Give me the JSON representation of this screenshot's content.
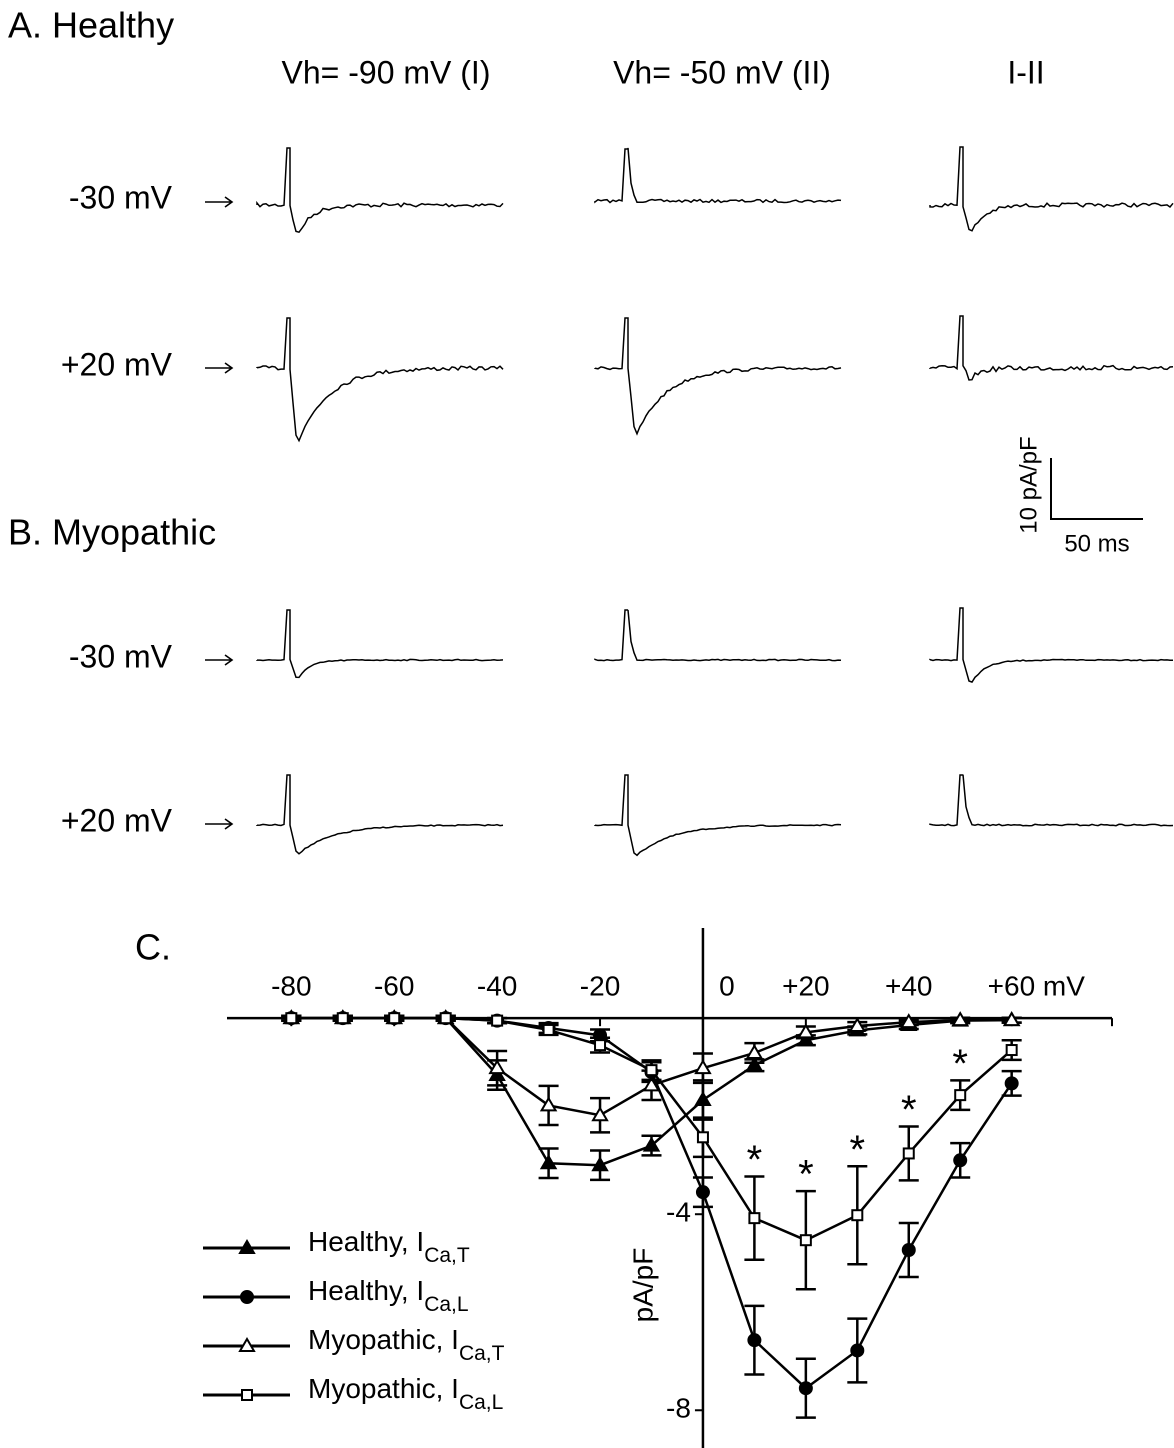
{
  "traces": {
    "panel_a": "A. Healthy",
    "panel_b": "B. Myopathic",
    "columns": [
      "Vh= -90 mV (I)",
      "Vh= -50 mV (II)",
      "I-II"
    ],
    "rows_a": [
      "-30 mV",
      "+20 mV"
    ],
    "rows_b": [
      "-30 mV",
      "+20 mV"
    ],
    "scale_y": "10 pA/pF",
    "scale_x": "50 ms"
  },
  "chart_data": {
    "type": "line",
    "panel_label": "C.",
    "y_label": "pA/pF",
    "x": [
      -80,
      -70,
      -60,
      -50,
      -40,
      -30,
      -20,
      -10,
      0,
      10,
      20,
      30,
      40,
      50,
      60
    ],
    "xlim": [
      -92.5,
      79.5
    ],
    "ylim": [
      -8.77,
      1.84
    ],
    "xticks": [
      -80,
      -60,
      -40,
      -20,
      0,
      {
        "value": 20,
        "label": "+20"
      },
      {
        "value": 40,
        "label": "+40"
      },
      {
        "value": 60,
        "label": "+60 mV"
      }
    ],
    "yticks": [
      -4,
      -8
    ],
    "series": [
      {
        "name": "Healthy, I",
        "subscript": "Ca,T",
        "color": "#000000",
        "marker": "triangle",
        "filled": true,
        "values": [
          0,
          0,
          0,
          0,
          -1.16,
          -2.96,
          -3.0,
          -2.6,
          -1.67,
          -0.96,
          -0.45,
          -0.25,
          -0.14,
          -0.05,
          -0.04
        ],
        "errors": [
          0.05,
          0.05,
          0.05,
          0.05,
          0.3,
          0.3,
          0.3,
          0.2,
          0.4,
          0.12,
          0.1,
          0.08,
          0.08,
          0.05,
          0.05
        ]
      },
      {
        "name": "Healthy, I",
        "subscript": "Ca,L",
        "color": "#000000",
        "marker": "circle",
        "filled": true,
        "values": [
          0,
          0,
          0,
          0,
          -0.05,
          -0.2,
          -0.35,
          -1.1,
          -3.55,
          -6.57,
          -7.55,
          -6.78,
          -4.73,
          -2.9,
          -1.33
        ],
        "errors": [
          0.05,
          0.05,
          0.05,
          0.05,
          0.05,
          0.1,
          0.12,
          0.2,
          0.3,
          0.7,
          0.6,
          0.65,
          0.55,
          0.35,
          0.25
        ]
      },
      {
        "name": "Myopathic, I",
        "subscript": "Ca,T",
        "color": "#000000",
        "marker": "triangle",
        "filled": false,
        "values": [
          0,
          0,
          0,
          0,
          -1.02,
          -1.78,
          -1.98,
          -1.37,
          -1.02,
          -0.71,
          -0.29,
          -0.16,
          -0.08,
          -0.04,
          -0.04
        ],
        "errors": [
          0.05,
          0.05,
          0.05,
          0.05,
          0.35,
          0.4,
          0.35,
          0.3,
          0.3,
          0.2,
          0.12,
          0.08,
          0.06,
          0.05,
          0.05
        ]
      },
      {
        "name": "Myopathic, I",
        "subscript": "Ca,L",
        "color": "#000000",
        "marker": "square",
        "filled": false,
        "values": [
          0,
          0,
          0,
          0,
          -0.05,
          -0.24,
          -0.55,
          -1.06,
          -2.43,
          -4.08,
          -4.53,
          -4.02,
          -2.76,
          -1.57,
          -0.65
        ],
        "errors": [
          0.05,
          0.05,
          0.05,
          0.05,
          0.05,
          0.1,
          0.15,
          0.2,
          0.4,
          0.85,
          1.0,
          1.0,
          0.55,
          0.3,
          0.2
        ]
      }
    ],
    "annotations": [
      {
        "x": 10,
        "text": "*"
      },
      {
        "x": 20,
        "text": "*"
      },
      {
        "x": 30,
        "text": "*"
      },
      {
        "x": 40,
        "text": "*"
      },
      {
        "x": 50,
        "text": "*"
      }
    ]
  }
}
